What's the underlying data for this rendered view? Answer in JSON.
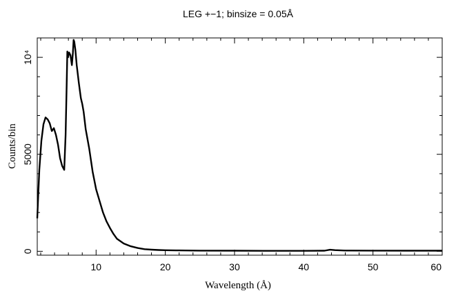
{
  "chart_data": {
    "type": "line",
    "title": "LEG +−1; binsize = 0.05Å",
    "xlabel": "Wavelength (Å)",
    "ylabel": "Counts/bin",
    "xlim": [
      1.5,
      60
    ],
    "ylim": [
      -200,
      11000
    ],
    "x_ticks": [
      10,
      20,
      30,
      40,
      50,
      60
    ],
    "x_tick_labels": [
      "10",
      "20",
      "30",
      "40",
      "50",
      "60"
    ],
    "y_ticks": [
      0,
      5000,
      10000
    ],
    "y_tick_labels": [
      "0",
      "5000",
      "10⁴"
    ],
    "grid": false,
    "series": [
      {
        "x": [
          1.5,
          1.8,
          2.1,
          2.4,
          2.7,
          3.0,
          3.3,
          3.6,
          3.9,
          4.2,
          4.5,
          4.8,
          5.1,
          5.4,
          5.6,
          5.75,
          5.85,
          5.95,
          6.1,
          6.3,
          6.5,
          6.65,
          6.75,
          6.85,
          7.0,
          7.2,
          7.5,
          7.8,
          8.0,
          8.2,
          8.5,
          9.0,
          9.5,
          10.0,
          10.5,
          11.0,
          11.5,
          12.0,
          12.5,
          13.0,
          14.0,
          15.0,
          16.0,
          17.0,
          18.0,
          19.0,
          20.0,
          22.0,
          25.0,
          30.0,
          35.0,
          40.0,
          43.0,
          43.8,
          44.5,
          46.0,
          50.0,
          55.0,
          60.0
        ],
        "values": [
          1700,
          4200,
          5700,
          6550,
          6900,
          6800,
          6600,
          6200,
          6350,
          6000,
          5500,
          4800,
          4400,
          4200,
          6000,
          8500,
          10300,
          10000,
          10250,
          10100,
          9600,
          10250,
          10900,
          10800,
          10400,
          9600,
          8700,
          7900,
          7600,
          7200,
          6300,
          5300,
          4100,
          3200,
          2600,
          2000,
          1550,
          1200,
          900,
          650,
          400,
          260,
          170,
          110,
          85,
          65,
          55,
          45,
          35,
          30,
          25,
          25,
          30,
          80,
          60,
          40,
          35,
          30,
          30
        ]
      }
    ]
  }
}
